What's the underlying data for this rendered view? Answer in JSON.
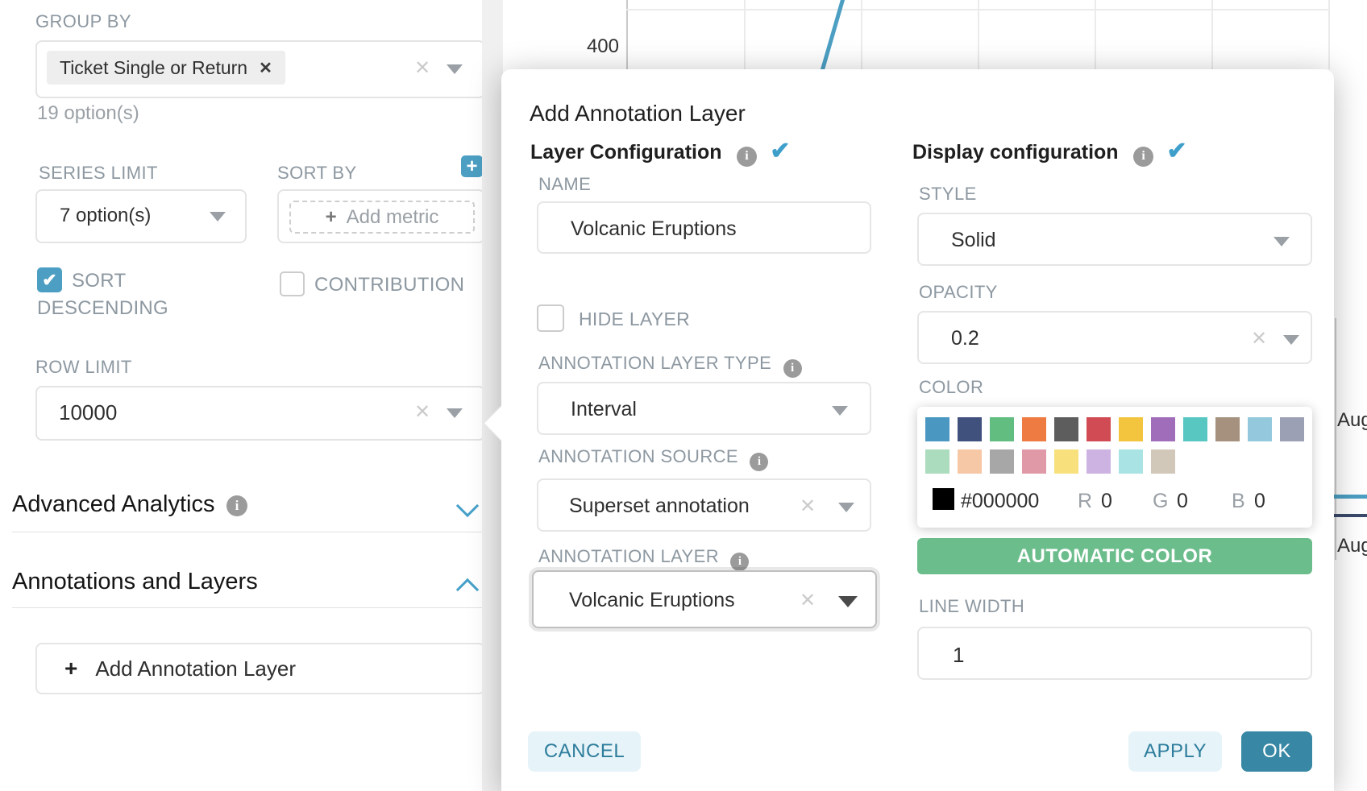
{
  "colors": {
    "accent_blue": "#4c9fc3",
    "check_teal": "#3f9fcb",
    "automatic_green": "#6cbd8c",
    "ok_teal": "#3787a5",
    "footer_light": "#e6f4f9",
    "series_light_blue": "#4c9fc3",
    "series_navy": "#3b4a6b"
  },
  "chart": {
    "y_tick": "400",
    "x_label_1": "Aug",
    "x_label_2": "Aug"
  },
  "left_panel": {
    "group_by_label": "GROUP BY",
    "group_by_chip": "Ticket Single or Return",
    "group_by_chip_remove": "✕",
    "group_by_hint": "19 option(s)",
    "series_limit_label": "SERIES LIMIT",
    "series_limit_value": "7 option(s)",
    "sort_by_label": "SORT BY",
    "sort_by_plus": "+",
    "add_metric_plus": "+",
    "add_metric_placeholder": "Add metric",
    "sort_descending_label": "SORT DESCENDING",
    "contribution_label": "CONTRIBUTION",
    "row_limit_label": "ROW LIMIT",
    "row_limit_value": "10000",
    "advanced_analytics_label": "Advanced Analytics",
    "annotations_layers_label": "Annotations and Layers",
    "add_annotation_plus": "+",
    "add_annotation_button": "Add Annotation Layer"
  },
  "modal": {
    "title": "Add Annotation Layer",
    "layer_config": {
      "heading": "Layer Configuration",
      "name_label": "NAME",
      "name_value": "Volcanic Eruptions",
      "hide_layer_label": "HIDE LAYER",
      "type_label": "ANNOTATION LAYER TYPE",
      "type_value": "Interval",
      "source_label": "ANNOTATION SOURCE",
      "source_value": "Superset annotation",
      "layer_label": "ANNOTATION LAYER",
      "layer_value": "Volcanic Eruptions"
    },
    "display_config": {
      "heading": "Display configuration",
      "style_label": "STYLE",
      "style_value": "Solid",
      "opacity_label": "OPACITY",
      "opacity_value": "0.2",
      "color_label": "COLOR",
      "color_picker": {
        "row1": [
          "#4a97c2",
          "#41517e",
          "#62bd80",
          "#ee7c42",
          "#5d5d5d",
          "#d04b53",
          "#f3c43d",
          "#a06dbb",
          "#58c6c1",
          "#a5917d",
          "#94c9dd",
          "#9ba0b5"
        ],
        "row2": [
          "#aadcbd",
          "#f7c8a6",
          "#a7a7a7",
          "#df99a7",
          "#f8e17d",
          "#ccb3e1",
          "#a9e3e4",
          "#d2c8b9"
        ],
        "hex_value": "#000000",
        "r_label": "R",
        "r_value": "0",
        "g_label": "G",
        "g_value": "0",
        "b_label": "B",
        "b_value": "0"
      },
      "automatic_color_button": "AUTOMATIC COLOR",
      "line_width_label": "LINE WIDTH",
      "line_width_value": "1"
    },
    "footer": {
      "cancel": "CANCEL",
      "apply": "APPLY",
      "ok": "OK"
    }
  }
}
